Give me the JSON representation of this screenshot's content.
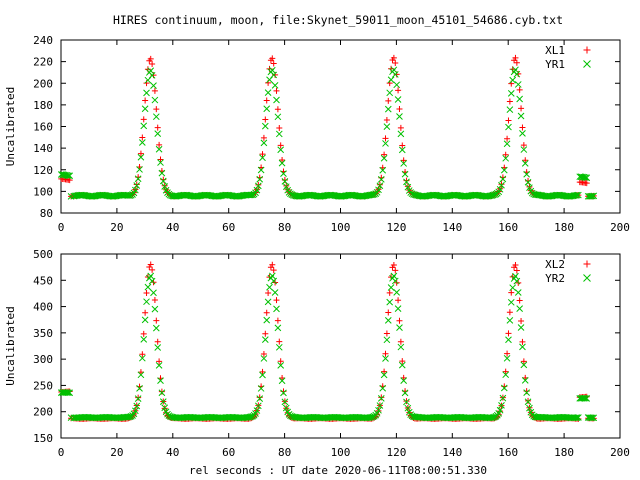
{
  "title": "HIRES continuum, moon, file:Skynet_59011_moon_45101_54686.cyb.txt",
  "xlabel": "rel seconds : UT date 2020-06-11T08:00:51.330",
  "colors": {
    "red": "#ff0000",
    "green": "#00c000"
  },
  "chart_data": [
    {
      "type": "scatter",
      "ylabel": "Uncalibrated",
      "xlim": [
        0,
        200
      ],
      "ylim": [
        80,
        240
      ],
      "xticks": [
        0,
        20,
        40,
        60,
        80,
        100,
        120,
        140,
        160,
        180,
        200
      ],
      "yticks": [
        80,
        100,
        120,
        140,
        160,
        180,
        200,
        220,
        240
      ],
      "legend_position": "top-right",
      "series": [
        {
          "name": "XL1",
          "marker": "plus",
          "color": "#ff0000",
          "baseline": 96,
          "peak": 223,
          "start_level": 111,
          "end_level": 108,
          "peaks_at": [
            32,
            75.5,
            119,
            162.5
          ],
          "peak_width": 2.2
        },
        {
          "name": "YR1",
          "marker": "cross",
          "color": "#00c000",
          "baseline": 96,
          "peak": 212,
          "start_level": 115,
          "end_level": 113,
          "peaks_at": [
            32,
            75.5,
            119,
            162.5
          ],
          "peak_width": 2.2
        }
      ],
      "x_range": [
        0,
        191
      ]
    },
    {
      "type": "scatter",
      "ylabel": "Uncalibrated",
      "xlim": [
        0,
        200
      ],
      "ylim": [
        150,
        500
      ],
      "xticks": [
        0,
        20,
        40,
        60,
        80,
        100,
        120,
        140,
        160,
        180,
        200
      ],
      "yticks": [
        150,
        200,
        250,
        300,
        350,
        400,
        450,
        500
      ],
      "legend_position": "top-right",
      "series": [
        {
          "name": "XL2",
          "marker": "plus",
          "color": "#ff0000",
          "baseline": 187,
          "peak": 480,
          "start_level": 238,
          "end_level": 228,
          "peaks_at": [
            32,
            75.5,
            119,
            162.5
          ],
          "peak_width": 2.2
        },
        {
          "name": "YR2",
          "marker": "cross",
          "color": "#00c000",
          "baseline": 189,
          "peak": 458,
          "start_level": 236,
          "end_level": 225,
          "peaks_at": [
            32,
            75.5,
            119,
            162.5
          ],
          "peak_width": 2.2
        }
      ],
      "x_range": [
        0,
        191
      ]
    }
  ]
}
